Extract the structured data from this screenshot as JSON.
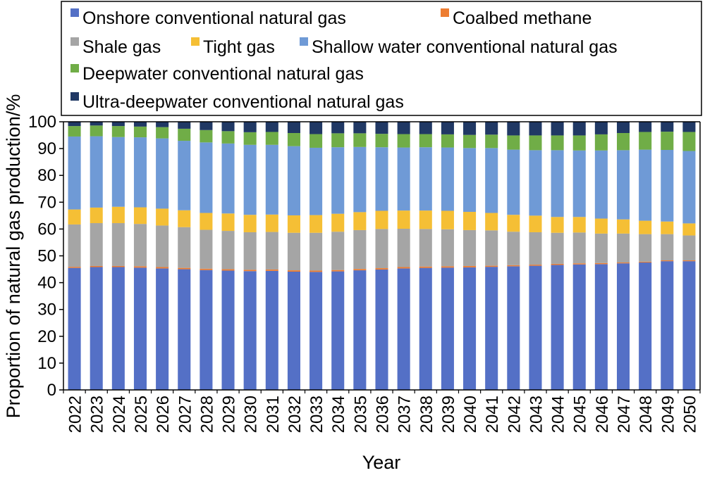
{
  "chart_data": {
    "type": "bar",
    "stacked": true,
    "xlabel": "Year",
    "ylabel": "Proportion of natural gas production/%",
    "ylim": [
      0,
      100
    ],
    "yticks": [
      0,
      10,
      20,
      30,
      40,
      50,
      60,
      70,
      80,
      90,
      100
    ],
    "grid": false,
    "legend_position": "top",
    "categories": [
      "2022",
      "2023",
      "2024",
      "2025",
      "2026",
      "2027",
      "2028",
      "2029",
      "2030",
      "2031",
      "2032",
      "2033",
      "2034",
      "2035",
      "2036",
      "2037",
      "2038",
      "2039",
      "2040",
      "2041",
      "2042",
      "2043",
      "2044",
      "2045",
      "2046",
      "2047",
      "2048",
      "2049",
      "2050"
    ],
    "series": [
      {
        "name": "Onshore conventional natural gas",
        "color": "#5470c6",
        "values": [
          45.5,
          45.8,
          45.8,
          45.6,
          45.3,
          45.0,
          44.7,
          44.5,
          44.3,
          44.4,
          44.1,
          44.0,
          44.2,
          44.6,
          44.9,
          45.3,
          45.5,
          45.6,
          45.7,
          45.9,
          46.1,
          46.3,
          46.6,
          46.8,
          46.9,
          47.2,
          47.5,
          48.0,
          48.0
        ]
      },
      {
        "name": "Coalbed methane",
        "color": "#ed7d31",
        "values": [
          0.4,
          0.4,
          0.4,
          0.5,
          0.5,
          0.5,
          0.5,
          0.5,
          0.5,
          0.5,
          0.5,
          0.5,
          0.5,
          0.5,
          0.5,
          0.5,
          0.5,
          0.5,
          0.5,
          0.4,
          0.4,
          0.4,
          0.4,
          0.4,
          0.4,
          0.3,
          0.3,
          0.3,
          0.3
        ]
      },
      {
        "name": "Shale gas",
        "color": "#a5a5a5",
        "values": [
          15.8,
          16.0,
          16.0,
          15.8,
          15.5,
          15.2,
          14.5,
          14.3,
          14.0,
          14.0,
          14.0,
          14.1,
          14.3,
          14.5,
          14.6,
          14.3,
          14.0,
          13.8,
          13.4,
          13.2,
          12.5,
          12.1,
          11.6,
          11.5,
          11.0,
          10.8,
          10.3,
          9.8,
          9.3
        ]
      },
      {
        "name": "Tight gas",
        "color": "#f5bf35",
        "values": [
          5.6,
          5.8,
          6.1,
          6.2,
          6.3,
          6.3,
          6.3,
          6.5,
          6.5,
          6.5,
          6.5,
          6.6,
          6.7,
          6.7,
          6.8,
          6.8,
          6.9,
          6.9,
          6.8,
          6.5,
          6.3,
          6.2,
          5.9,
          5.8,
          5.6,
          5.3,
          5.0,
          4.7,
          4.5
        ]
      },
      {
        "name": "Shallow water conventional natural gas",
        "color": "#6f9ad6",
        "values": [
          27.2,
          26.6,
          26.0,
          26.1,
          26.2,
          25.9,
          26.3,
          26.1,
          26.1,
          26.0,
          25.8,
          25.1,
          24.8,
          24.3,
          23.7,
          23.5,
          23.6,
          23.6,
          23.8,
          24.2,
          24.3,
          24.4,
          24.9,
          24.8,
          25.4,
          25.8,
          26.5,
          26.7,
          27.0
        ]
      },
      {
        "name": "Deepwater conventional natural gas",
        "color": "#70ad47",
        "values": [
          3.9,
          4.0,
          4.1,
          4.0,
          4.2,
          4.5,
          4.6,
          4.6,
          4.7,
          4.8,
          4.9,
          5.1,
          5.2,
          5.1,
          5.0,
          5.0,
          4.9,
          4.9,
          4.9,
          5.0,
          5.3,
          5.5,
          5.5,
          5.6,
          6.0,
          6.4,
          6.6,
          6.8,
          7.1
        ]
      },
      {
        "name": "Ultra-deepwater conventional natural gas",
        "color": "#203864",
        "values": [
          1.6,
          1.4,
          1.6,
          1.8,
          2.0,
          2.6,
          3.1,
          3.5,
          3.9,
          3.8,
          4.2,
          4.6,
          4.3,
          4.3,
          4.5,
          4.6,
          4.6,
          4.7,
          4.9,
          4.8,
          5.1,
          5.1,
          5.1,
          5.1,
          4.7,
          4.2,
          3.8,
          3.7,
          3.8
        ]
      }
    ]
  }
}
